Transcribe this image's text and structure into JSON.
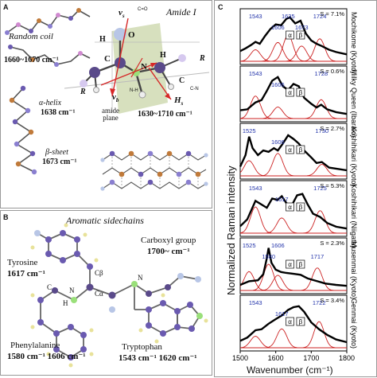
{
  "panel_a": {
    "label": "A",
    "title": "Amide I",
    "random_coil_name": "Random coil",
    "random_coil_range": "1660~1670 cm⁻¹",
    "alpha_helix_name": "α-helix",
    "alpha_helix_freq": "1638 cm⁻¹",
    "beta_sheet_name": "β-sheet",
    "beta_sheet_freq": "1673 cm⁻¹",
    "amide_plane_label": "amide plane",
    "amide_range": "1630~1710 cm⁻¹",
    "atoms": {
      "O": "O",
      "C": "C",
      "N": "N",
      "H": "H",
      "H2": "H",
      "R1": "R",
      "R2": "R",
      "C2": "C"
    },
    "vectors": {
      "vs": "v",
      "vs_sub": "s",
      "cdo": "C=O",
      "vb": "v",
      "vb_sub": "b",
      "nh": "N-H",
      "hs": "H",
      "hs_sub": "s",
      "cn": "C-N"
    }
  },
  "panel_b": {
    "label": "B",
    "title": "Aromatic sidechains",
    "tyrosine_name": "Tyrosine",
    "tyrosine_freq": "1617 cm⁻¹",
    "carboxyl_name": "Carboxyl group",
    "carboxyl_freq": "1700~ cm⁻¹",
    "phe_name": "Phenylalanine",
    "phe_freq": "1580 cm⁻¹ 1606 cm⁻¹",
    "trp_name": "Tryptophan",
    "trp_freq": "1543 cm⁻¹  1620 cm⁻¹",
    "atoms": {
      "cb": "Cβ",
      "ca": "Cα",
      "c": "C",
      "n": "N",
      "h": "H",
      "n2": "N"
    }
  },
  "panel_c": {
    "label": "C",
    "y_label": "Normalized Raman intensity",
    "x_label": "Wavenumber (cm⁻¹)"
  },
  "chart_data": {
    "type": "line",
    "xlabel": "Wavenumber (cm⁻¹)",
    "ylabel": "Normalized Raman intensity",
    "xlim": [
      1500,
      1800
    ],
    "xticks": [
      "1500",
      "1600",
      "1700",
      "1800"
    ],
    "alpha_marker": "α",
    "beta_marker": "β",
    "panels": [
      {
        "name": "Mochikome (Kyoto)",
        "ss": "S = 7.1%",
        "peaks": [
          "1543",
          "1606",
          "1635",
          "1673",
          "1724"
        ],
        "obs": [
          [
            1500,
            0.22
          ],
          [
            1515,
            0.28
          ],
          [
            1530,
            0.35
          ],
          [
            1543,
            0.42
          ],
          [
            1555,
            0.38
          ],
          [
            1570,
            0.55
          ],
          [
            1585,
            0.7
          ],
          [
            1600,
            0.8
          ],
          [
            1615,
            0.78
          ],
          [
            1630,
            0.92
          ],
          [
            1640,
            0.95
          ],
          [
            1655,
            0.82
          ],
          [
            1670,
            0.88
          ],
          [
            1685,
            0.6
          ],
          [
            1700,
            0.45
          ],
          [
            1715,
            0.38
          ],
          [
            1730,
            0.33
          ],
          [
            1750,
            0.25
          ],
          [
            1770,
            0.2
          ],
          [
            1800,
            0.15
          ]
        ]
      },
      {
        "name": "Milky Queen (Ibaraki)",
        "ss": "S = 0.6%",
        "peaks": [
          "1543",
          "1606",
          "1728"
        ],
        "obs": [
          [
            1500,
            0.18
          ],
          [
            1520,
            0.2
          ],
          [
            1543,
            0.35
          ],
          [
            1560,
            0.4
          ],
          [
            1575,
            0.6
          ],
          [
            1590,
            0.82
          ],
          [
            1606,
            0.9
          ],
          [
            1620,
            0.7
          ],
          [
            1635,
            0.62
          ],
          [
            1650,
            0.75
          ],
          [
            1665,
            0.7
          ],
          [
            1680,
            0.45
          ],
          [
            1700,
            0.32
          ],
          [
            1715,
            0.24
          ],
          [
            1728,
            0.3
          ],
          [
            1745,
            0.2
          ],
          [
            1770,
            0.14
          ],
          [
            1800,
            0.1
          ]
        ]
      },
      {
        "name": "Koshihikari (Kyoto)",
        "ss": "S = 2.7%",
        "peaks": [
          "1525",
          "1606",
          "1730"
        ],
        "obs": [
          [
            1500,
            0.2
          ],
          [
            1515,
            0.45
          ],
          [
            1525,
            0.85
          ],
          [
            1535,
            0.6
          ],
          [
            1550,
            0.45
          ],
          [
            1565,
            0.55
          ],
          [
            1580,
            0.52
          ],
          [
            1595,
            0.6
          ],
          [
            1606,
            0.55
          ],
          [
            1620,
            0.7
          ],
          [
            1635,
            0.88
          ],
          [
            1650,
            0.8
          ],
          [
            1665,
            0.7
          ],
          [
            1680,
            0.55
          ],
          [
            1700,
            0.4
          ],
          [
            1715,
            0.28
          ],
          [
            1730,
            0.3
          ],
          [
            1750,
            0.18
          ],
          [
            1800,
            0.12
          ]
        ]
      },
      {
        "name": "Koshihikari (Niigata)",
        "ss": "S = 5.3%",
        "peaks": [
          "1543",
          "1617",
          "1725"
        ],
        "obs": [
          [
            1500,
            0.15
          ],
          [
            1520,
            0.3
          ],
          [
            1543,
            0.7
          ],
          [
            1560,
            0.62
          ],
          [
            1575,
            0.55
          ],
          [
            1590,
            0.75
          ],
          [
            1605,
            0.72
          ],
          [
            1617,
            0.8
          ],
          [
            1630,
            0.65
          ],
          [
            1645,
            0.6
          ],
          [
            1660,
            0.82
          ],
          [
            1675,
            0.85
          ],
          [
            1690,
            0.62
          ],
          [
            1705,
            0.42
          ],
          [
            1725,
            0.35
          ],
          [
            1745,
            0.22
          ],
          [
            1770,
            0.14
          ],
          [
            1800,
            0.1
          ]
        ]
      },
      {
        "name": "Musenmai (Kyoto)",
        "ss": "S = 2.3%",
        "peaks": [
          "1525",
          "1580",
          "1606",
          "1717"
        ],
        "obs": [
          [
            1500,
            0.12
          ],
          [
            1525,
            0.2
          ],
          [
            1550,
            0.22
          ],
          [
            1565,
            0.35
          ],
          [
            1575,
            0.7
          ],
          [
            1580,
            0.92
          ],
          [
            1588,
            0.6
          ],
          [
            1600,
            0.45
          ],
          [
            1615,
            0.4
          ],
          [
            1630,
            0.38
          ],
          [
            1650,
            0.36
          ],
          [
            1670,
            0.34
          ],
          [
            1690,
            0.26
          ],
          [
            1717,
            0.2
          ],
          [
            1740,
            0.15
          ],
          [
            1770,
            0.12
          ],
          [
            1800,
            0.1
          ]
        ]
      },
      {
        "name": "Genmai (Kyoto)",
        "ss": "S = 3.4%",
        "peaks": [
          "1543",
          "1617",
          "1722"
        ],
        "obs": [
          [
            1500,
            0.15
          ],
          [
            1520,
            0.22
          ],
          [
            1543,
            0.38
          ],
          [
            1560,
            0.4
          ],
          [
            1580,
            0.52
          ],
          [
            1600,
            0.62
          ],
          [
            1617,
            0.7
          ],
          [
            1635,
            0.82
          ],
          [
            1650,
            0.88
          ],
          [
            1665,
            0.9
          ],
          [
            1680,
            0.78
          ],
          [
            1700,
            0.55
          ],
          [
            1722,
            0.4
          ],
          [
            1745,
            0.28
          ],
          [
            1770,
            0.18
          ],
          [
            1800,
            0.12
          ]
        ]
      }
    ]
  }
}
